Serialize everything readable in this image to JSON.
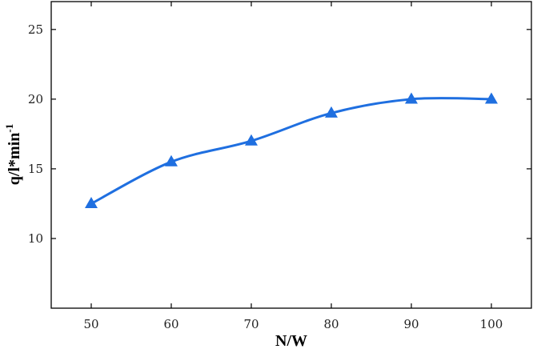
{
  "chart_data": {
    "type": "line",
    "title": "",
    "xlabel": "N/W",
    "ylabel": "q/l*min",
    "ylabel_superscript": "-1",
    "x": [
      50,
      60,
      70,
      80,
      90,
      100
    ],
    "series": [
      {
        "values": [
          12.5,
          15.5,
          17.0,
          19.0,
          20.0,
          20.0
        ],
        "color": "#1f6fe0",
        "marker": "triangle",
        "smooth": true
      }
    ],
    "xlim": [
      45,
      105
    ],
    "ylim": [
      5,
      27
    ],
    "xticks": [
      50,
      60,
      70,
      80,
      90,
      100
    ],
    "yticks": [
      10,
      15,
      20,
      25
    ],
    "grid": false,
    "legend": "none"
  }
}
